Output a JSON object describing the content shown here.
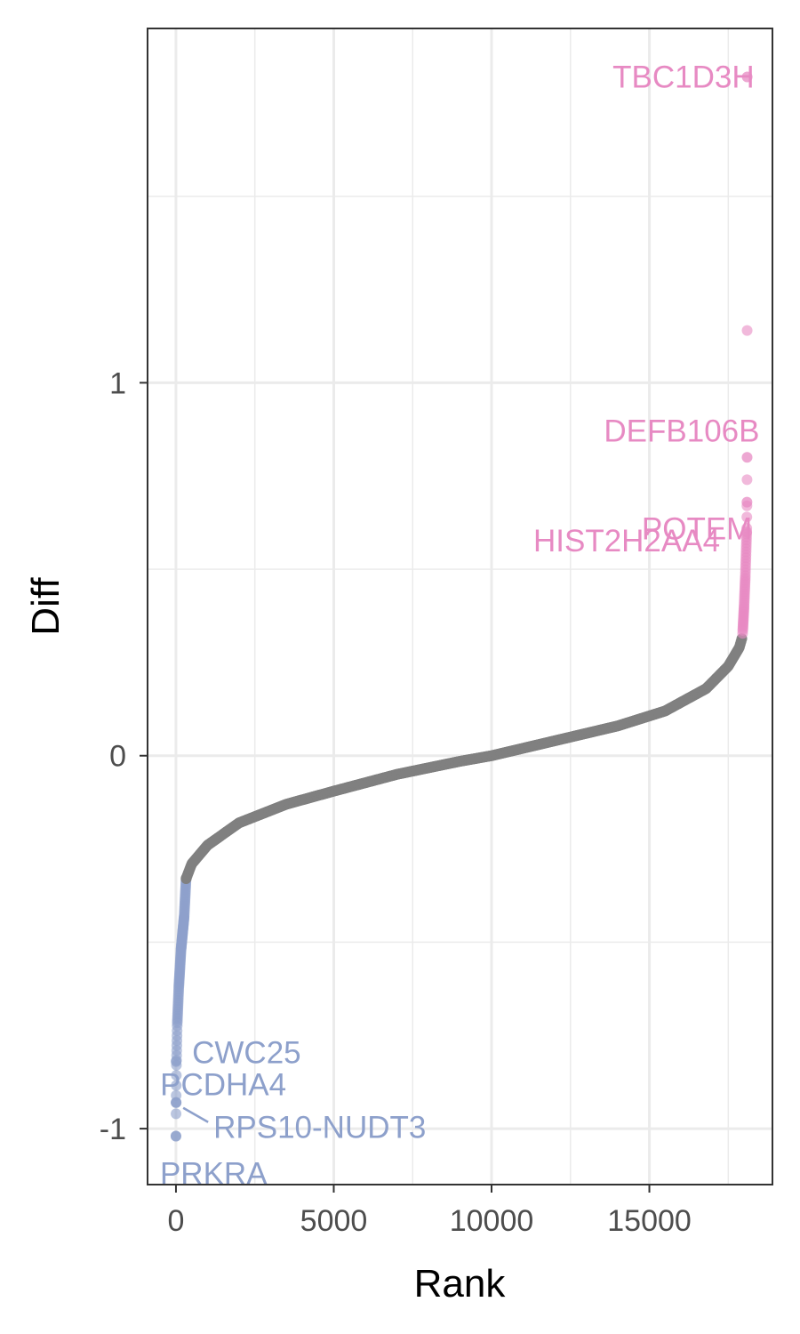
{
  "chart_data": {
    "type": "scatter",
    "xlabel": "Rank",
    "ylabel": "Diff",
    "xlim": [
      -900,
      18900
    ],
    "ylim": [
      -1.15,
      1.95
    ],
    "x_ticks": [
      0,
      5000,
      10000,
      15000
    ],
    "x_tick_labels": [
      "0",
      "5000",
      "10000",
      "15000"
    ],
    "y_ticks": [
      -1,
      0,
      1
    ],
    "y_tick_labels": [
      "-1",
      "0",
      "1"
    ],
    "grid": true,
    "n_points": 18100,
    "colors": {
      "up": "#e78ac3",
      "down": "#8da0cb",
      "neutral": "#808080"
    },
    "curve": [
      {
        "rank": 0,
        "diff": -1.02
      },
      {
        "rank": 5,
        "diff": -0.92
      },
      {
        "rank": 15,
        "diff": -0.83
      },
      {
        "rank": 40,
        "diff": -0.72
      },
      {
        "rank": 90,
        "diff": -0.62
      },
      {
        "rank": 160,
        "diff": -0.52
      },
      {
        "rank": 260,
        "diff": -0.43
      },
      {
        "rank": 320,
        "diff": -0.33
      },
      {
        "rank": 500,
        "diff": -0.29
      },
      {
        "rank": 1000,
        "diff": -0.24
      },
      {
        "rank": 2000,
        "diff": -0.18
      },
      {
        "rank": 3500,
        "diff": -0.13
      },
      {
        "rank": 5000,
        "diff": -0.095
      },
      {
        "rank": 7000,
        "diff": -0.05
      },
      {
        "rank": 9000,
        "diff": -0.015
      },
      {
        "rank": 10000,
        "diff": 0.0
      },
      {
        "rank": 12000,
        "diff": 0.04
      },
      {
        "rank": 14000,
        "diff": 0.08
      },
      {
        "rank": 15500,
        "diff": 0.12
      },
      {
        "rank": 16800,
        "diff": 0.18
      },
      {
        "rank": 17500,
        "diff": 0.24
      },
      {
        "rank": 17850,
        "diff": 0.29
      },
      {
        "rank": 17950,
        "diff": 0.32
      },
      {
        "rank": 18000,
        "diff": 0.4
      },
      {
        "rank": 18040,
        "diff": 0.48
      },
      {
        "rank": 18070,
        "diff": 0.56
      },
      {
        "rank": 18085,
        "diff": 0.6
      },
      {
        "rank": 18093,
        "diff": 0.68
      },
      {
        "rank": 18097,
        "diff": 0.8
      },
      {
        "rank": 18100,
        "diff": 1.82
      }
    ],
    "thresholds": {
      "down": -0.33,
      "up": 0.32
    },
    "labels": [
      {
        "text": "TBC1D3H",
        "x": 18100,
        "y": 1.82,
        "group": "up"
      },
      {
        "text": "DEFB106B",
        "x": 18097,
        "y": 0.8,
        "group": "up"
      },
      {
        "text": "POTEM",
        "x": 18093,
        "y": 0.68,
        "group": "up"
      },
      {
        "text": "HIST2H2AA4",
        "x": 18085,
        "y": 0.6,
        "group": "up"
      },
      {
        "text": "CWC25",
        "x": 5,
        "y": -0.82,
        "group": "down"
      },
      {
        "text": "PCDHA4",
        "x": 5,
        "y": -0.93,
        "group": "down"
      },
      {
        "text": "RPS10-NUDT3",
        "x": 5,
        "y": -0.93,
        "group": "down"
      },
      {
        "text": "PRKRA",
        "x": 0,
        "y": -1.02,
        "group": "down"
      }
    ]
  }
}
